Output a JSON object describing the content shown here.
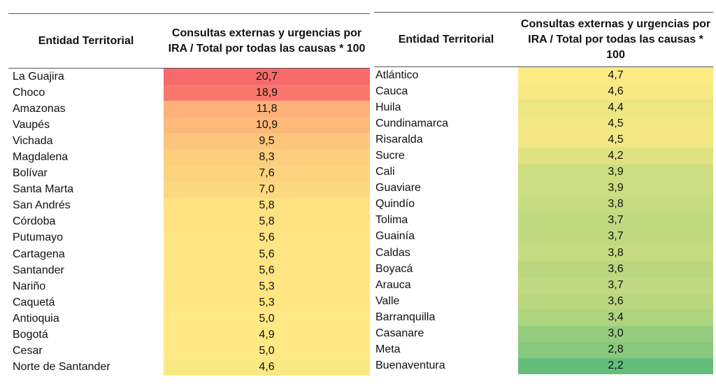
{
  "color_scale": {
    "min": "#63BE7B",
    "mid": "#FFEB84",
    "max": "#F8696B"
  },
  "header": {
    "entity": "Entidad Territorial",
    "metric": "Consultas externas y urgencias por IRA / Total por todas las causas * 100"
  },
  "left_table": [
    {
      "entity": "La Guajira",
      "value": "20,7"
    },
    {
      "entity": "Choco",
      "value": "18,9"
    },
    {
      "entity": "Amazonas",
      "value": "11,8"
    },
    {
      "entity": "Vaupés",
      "value": "10,9"
    },
    {
      "entity": "Vichada",
      "value": "9,5"
    },
    {
      "entity": "Magdalena",
      "value": "8,3"
    },
    {
      "entity": "Bolívar",
      "value": "7,6"
    },
    {
      "entity": "Santa Marta",
      "value": "7,0"
    },
    {
      "entity": "San Andrés",
      "value": "5,8"
    },
    {
      "entity": "Córdoba",
      "value": "5,8"
    },
    {
      "entity": "Putumayo",
      "value": "5,6"
    },
    {
      "entity": "Cartagena",
      "value": "5,6"
    },
    {
      "entity": "Santander",
      "value": "5,6"
    },
    {
      "entity": "Nariño",
      "value": "5,3"
    },
    {
      "entity": "Caquetá",
      "value": "5,3"
    },
    {
      "entity": "Antioquia",
      "value": "5,0"
    },
    {
      "entity": "Bogotá",
      "value": "4,9"
    },
    {
      "entity": "Cesar",
      "value": "5,0"
    },
    {
      "entity": "Norte de Santander",
      "value": "4,6"
    }
  ],
  "right_table": [
    {
      "entity": "Atlántico",
      "value": "4,7"
    },
    {
      "entity": "Cauca",
      "value": "4,6"
    },
    {
      "entity": "Huila",
      "value": "4,4"
    },
    {
      "entity": "Cundinamarca",
      "value": "4,5"
    },
    {
      "entity": "Risaralda",
      "value": "4,5"
    },
    {
      "entity": "Sucre",
      "value": "4,2"
    },
    {
      "entity": "Cali",
      "value": "3,9"
    },
    {
      "entity": "Guaviare",
      "value": "3,9"
    },
    {
      "entity": "Quindío",
      "value": "3,8"
    },
    {
      "entity": "Tolima",
      "value": "3,7"
    },
    {
      "entity": "Guainía",
      "value": "3,7"
    },
    {
      "entity": "Caldas",
      "value": "3,8"
    },
    {
      "entity": "Boyacá",
      "value": "3,6"
    },
    {
      "entity": "Arauca",
      "value": "3,7"
    },
    {
      "entity": "Valle",
      "value": "3,6"
    },
    {
      "entity": "Barranquilla",
      "value": "3,4"
    },
    {
      "entity": "Casanare",
      "value": "3,0"
    },
    {
      "entity": "Meta",
      "value": "2,8"
    },
    {
      "entity": "Buenaventura",
      "value": "2,2"
    }
  ]
}
